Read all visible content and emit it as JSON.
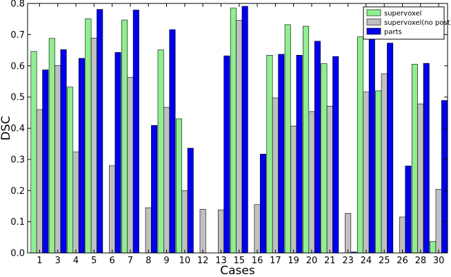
{
  "chart_data": {
    "type": "bar",
    "xlabel": "Cases",
    "ylabel": "DSC",
    "ylim": [
      0,
      0.8
    ],
    "yticks": [
      "0.0",
      "0.1",
      "0.2",
      "0.3",
      "0.4",
      "0.5",
      "0.6",
      "0.7",
      "0.8"
    ],
    "categories": [
      "1",
      "3",
      "4",
      "5",
      "6",
      "7",
      "8",
      "9",
      "10",
      "12",
      "13",
      "15",
      "16",
      "17",
      "19",
      "20",
      "21",
      "23",
      "24",
      "25",
      "26",
      "28",
      "30"
    ],
    "series": [
      {
        "name": "supervoxel",
        "color": "#90ee90",
        "values": [
          0.646,
          0.688,
          0.532,
          0.751,
          0,
          0.747,
          0,
          0.651,
          0.43,
          0,
          0,
          0.785,
          0,
          0.634,
          0.732,
          0.727,
          0.607,
          0,
          0.693,
          0.52,
          0,
          0.605,
          0.037
        ]
      },
      {
        "name": "supervoxel(no post)",
        "color": "#c0c0c0",
        "values": [
          0.459,
          0.601,
          0.324,
          0.689,
          0.28,
          0.563,
          0.145,
          0.467,
          0.2,
          0.14,
          0.138,
          0.746,
          0.155,
          0.497,
          0.407,
          0.453,
          0.471,
          0.127,
          0.516,
          0.575,
          0.115,
          0.478,
          0.204
        ]
      },
      {
        "name": "parts",
        "color": "#0000ee",
        "values": [
          0.587,
          0.652,
          0.624,
          0.781,
          0.643,
          0.779,
          0.409,
          0.716,
          0.336,
          0,
          0.632,
          0.791,
          0.317,
          0.637,
          0.634,
          0.679,
          0.63,
          0.003,
          0.695,
          0.673,
          0.279,
          0.608,
          0.489
        ]
      }
    ],
    "legend": {
      "placement": "top-right"
    },
    "grid": false
  }
}
